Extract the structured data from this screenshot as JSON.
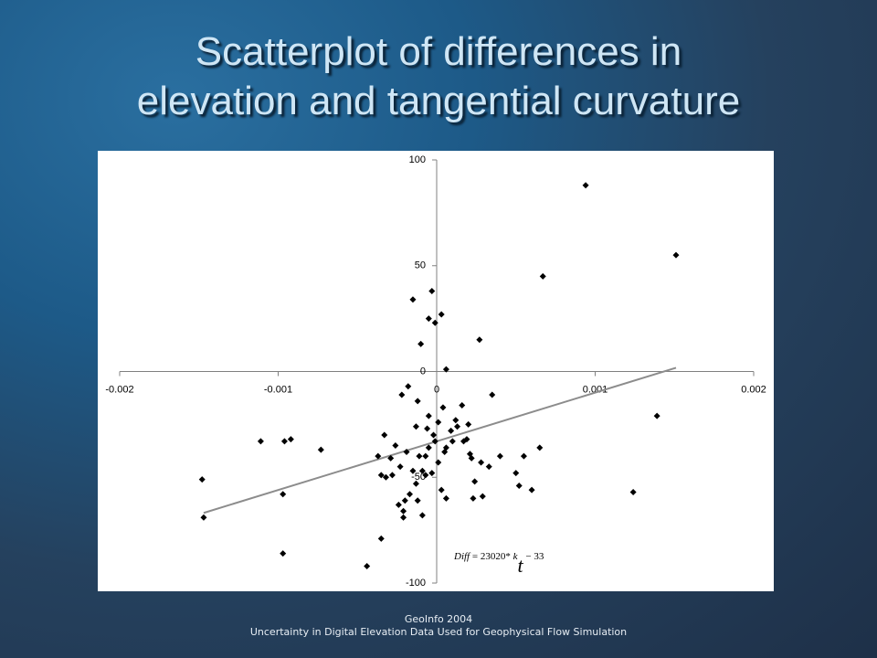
{
  "slide": {
    "title_lines": [
      "Scatterplot of differences in",
      "elevation and tangential curvature"
    ],
    "footer_lines": [
      "GeoInfo 2004",
      "Uncertainty in Digital Elevation Data Used for Geophysical Flow Simulation"
    ]
  },
  "chart_data": {
    "type": "scatter",
    "x": [
      0.00094,
      0.00151,
      0.00067,
      -3e-05,
      -0.00015,
      3e-05,
      -5e-05,
      -1e-05,
      0.00027,
      -0.0001,
      6e-05,
      0.00035,
      -0.00022,
      -0.00018,
      -0.00012,
      0.00139,
      -0.00111,
      -0.00092,
      -0.00096,
      -0.00073,
      -0.00148,
      -0.00147,
      -0.00097,
      -0.00097,
      -0.00044,
      -0.00035,
      0.00124,
      0.00065,
      0.00055,
      0.0005,
      0.00052,
      0.0006,
      0.0004,
      0.00033,
      0.00029,
      0.00023,
      0.00024,
      0.00021,
      0.00019,
      0.0002,
      0.00016,
      0.00012,
      9e-05,
      6e-05,
      4e-05,
      1e-05,
      -2e-05,
      -5e-05,
      -7e-05,
      -9e-05,
      -0.00012,
      -0.00013,
      -0.00017,
      -0.0002,
      -0.00024,
      -0.00021,
      -0.00021,
      -9e-05,
      3e-05,
      6e-05,
      -0.00028,
      -0.00032,
      -0.00035,
      -0.00037,
      -0.00029,
      -0.00033,
      -0.00026,
      -0.00023,
      -0.00019,
      -0.00015,
      -0.00011,
      -7e-05,
      -3e-05,
      1e-05,
      5e-05,
      0.0001,
      0.00013,
      0.00017,
      0.00022,
      0.00028,
      -5e-05,
      -0.00013,
      -6e-05,
      -1e-05
    ],
    "series": [
      {
        "color": "#000000",
        "values": [
          88,
          55,
          45,
          38,
          34,
          27,
          25,
          23,
          15,
          13,
          1,
          -11,
          -11,
          -7,
          -14,
          -21,
          -33,
          -32,
          -33,
          -37,
          -51,
          -69,
          -58,
          -86,
          -92,
          -79,
          -57,
          -36,
          -40,
          -48,
          -54,
          -56,
          -40,
          -45,
          -59,
          -60,
          -52,
          -39,
          -32,
          -25,
          -16,
          -23,
          -28,
          -36,
          -17,
          -24,
          -30,
          -36,
          -40,
          -47,
          -61,
          -53,
          -58,
          -61,
          -63,
          -69,
          -66,
          -68,
          -56,
          -60,
          -49,
          -50,
          -49,
          -40,
          -41,
          -30,
          -35,
          -45,
          -38,
          -47,
          -40,
          -49,
          -48,
          -43,
          -38,
          -33,
          -26,
          -33,
          -41,
          -43,
          -21,
          -26,
          -27,
          -33
        ]
      }
    ],
    "xlim": [
      -0.002,
      0.002
    ],
    "xticks": [
      -0.002,
      -0.001,
      0,
      0.001,
      0.002
    ],
    "ylim": [
      -100,
      100
    ],
    "yticks": [
      -100,
      -50,
      0,
      50,
      100
    ],
    "trendline": {
      "slope": 23020,
      "intercept": -33,
      "xrange": [
        -0.00147,
        0.00151
      ],
      "color": "#8c8c8c"
    },
    "equation": [
      "Diff",
      " = 23020* ",
      "k",
      "t",
      " − 33"
    ]
  }
}
